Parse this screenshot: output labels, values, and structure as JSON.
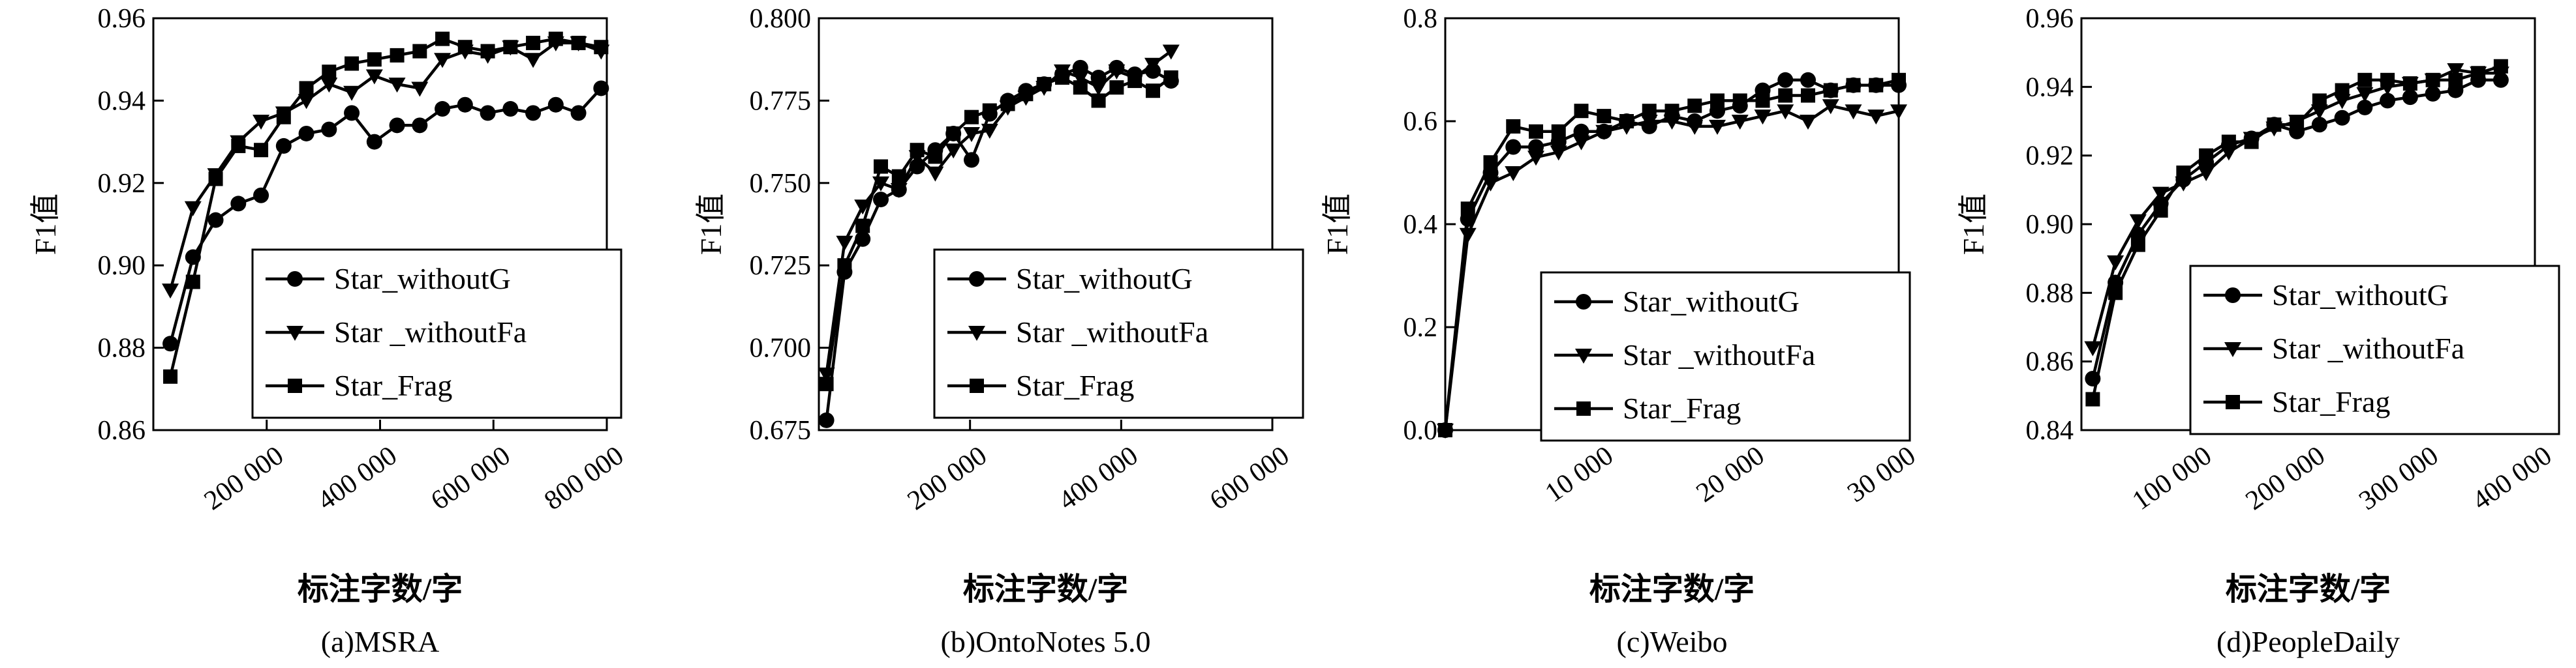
{
  "chart_data": [
    {
      "type": "line",
      "caption": "(a)MSRA",
      "xlabel": "标注字数/字",
      "ylabel": "F1值",
      "xlim": [
        0,
        800000
      ],
      "ylim": [
        0.86,
        0.96
      ],
      "xticks": [
        200000,
        400000,
        600000,
        800000
      ],
      "xtick_labels": [
        "200 000",
        "400 000",
        "600 000",
        "800 000"
      ],
      "yticks": [
        0.86,
        0.88,
        0.9,
        0.92,
        0.94,
        0.96
      ],
      "ytick_labels": [
        "0.86",
        "0.88",
        "0.90",
        "0.92",
        "0.94",
        "0.96"
      ],
      "legend_position": "lower-right",
      "grid": false,
      "series": [
        {
          "name": "Star_withoutG",
          "marker": "circle",
          "x": [
            30000,
            70000,
            110000,
            150000,
            190000,
            230000,
            270000,
            310000,
            350000,
            390000,
            430000,
            470000,
            510000,
            550000,
            590000,
            630000,
            670000,
            710000,
            750000,
            790000
          ],
          "y": [
            0.881,
            0.902,
            0.911,
            0.915,
            0.917,
            0.929,
            0.932,
            0.933,
            0.937,
            0.93,
            0.934,
            0.934,
            0.938,
            0.939,
            0.937,
            0.938,
            0.937,
            0.939,
            0.937,
            0.943
          ]
        },
        {
          "name": "Star _withoutFa",
          "marker": "triangle-down",
          "x": [
            30000,
            70000,
            110000,
            150000,
            190000,
            230000,
            270000,
            310000,
            350000,
            390000,
            430000,
            470000,
            510000,
            550000,
            590000,
            630000,
            670000,
            710000,
            750000,
            790000
          ],
          "y": [
            0.894,
            0.914,
            0.922,
            0.93,
            0.935,
            0.937,
            0.94,
            0.944,
            0.942,
            0.946,
            0.944,
            0.943,
            0.95,
            0.952,
            0.951,
            0.953,
            0.95,
            0.954,
            0.954,
            0.952
          ]
        },
        {
          "name": "Star_Frag",
          "marker": "square",
          "x": [
            30000,
            70000,
            110000,
            150000,
            190000,
            230000,
            270000,
            310000,
            350000,
            390000,
            430000,
            470000,
            510000,
            550000,
            590000,
            630000,
            670000,
            710000,
            750000,
            790000
          ],
          "y": [
            0.873,
            0.896,
            0.921,
            0.929,
            0.928,
            0.936,
            0.943,
            0.947,
            0.949,
            0.95,
            0.951,
            0.952,
            0.955,
            0.953,
            0.952,
            0.953,
            0.954,
            0.955,
            0.954,
            0.953
          ]
        }
      ]
    },
    {
      "type": "line",
      "caption": "(b)OntoNotes 5.0",
      "xlabel": "标注字数/字",
      "ylabel": "F1值",
      "xlim": [
        0,
        600000
      ],
      "ylim": [
        0.675,
        0.8
      ],
      "xticks": [
        200000,
        400000,
        600000
      ],
      "xtick_labels": [
        "200 000",
        "400 000",
        "600 000"
      ],
      "yticks": [
        0.675,
        0.7,
        0.725,
        0.75,
        0.775,
        0.8
      ],
      "ytick_labels": [
        "0.675",
        "0.700",
        "0.725",
        "0.750",
        "0.775",
        "0.800"
      ],
      "legend_position": "lower-right",
      "grid": false,
      "series": [
        {
          "name": "Star_withoutG",
          "marker": "circle",
          "x": [
            10000,
            34000,
            58000,
            82000,
            106000,
            130000,
            154000,
            178000,
            202000,
            226000,
            250000,
            274000,
            298000,
            322000,
            346000,
            370000,
            394000,
            418000,
            442000,
            466000
          ],
          "y": [
            0.678,
            0.723,
            0.733,
            0.745,
            0.748,
            0.755,
            0.76,
            0.765,
            0.757,
            0.771,
            0.775,
            0.778,
            0.78,
            0.783,
            0.785,
            0.782,
            0.785,
            0.783,
            0.784,
            0.781
          ]
        },
        {
          "name": "Star _withoutFa",
          "marker": "triangle-down",
          "x": [
            10000,
            34000,
            58000,
            82000,
            106000,
            130000,
            154000,
            178000,
            202000,
            226000,
            250000,
            274000,
            298000,
            322000,
            346000,
            370000,
            394000,
            418000,
            442000,
            466000
          ],
          "y": [
            0.692,
            0.732,
            0.743,
            0.75,
            0.748,
            0.758,
            0.753,
            0.76,
            0.765,
            0.766,
            0.773,
            0.776,
            0.779,
            0.784,
            0.782,
            0.779,
            0.784,
            0.782,
            0.786,
            0.79
          ]
        },
        {
          "name": "Star_Frag",
          "marker": "square",
          "x": [
            10000,
            34000,
            58000,
            82000,
            106000,
            130000,
            154000,
            178000,
            202000,
            226000,
            250000,
            274000,
            298000,
            322000,
            346000,
            370000,
            394000,
            418000,
            442000,
            466000
          ],
          "y": [
            0.689,
            0.725,
            0.737,
            0.755,
            0.752,
            0.76,
            0.758,
            0.765,
            0.77,
            0.772,
            0.774,
            0.777,
            0.78,
            0.782,
            0.779,
            0.775,
            0.779,
            0.781,
            0.778,
            0.782
          ]
        }
      ]
    },
    {
      "type": "line",
      "caption": "(c)Weibo",
      "xlabel": "标注字数/字",
      "ylabel": "F1值",
      "xlim": [
        0,
        30000
      ],
      "ylim": [
        0.0,
        0.8
      ],
      "xticks": [
        10000,
        20000,
        30000
      ],
      "xtick_labels": [
        "10 000",
        "20 000",
        "30 000"
      ],
      "yticks": [
        0.0,
        0.2,
        0.4,
        0.6,
        0.8
      ],
      "ytick_labels": [
        "0.0",
        "0.2",
        "0.4",
        "0.6",
        "0.8"
      ],
      "legend_position": "lower-right",
      "grid": false,
      "series": [
        {
          "name": "Star_withoutG",
          "marker": "circle",
          "x": [
            0,
            1500,
            3000,
            4500,
            6000,
            7500,
            9000,
            10500,
            12000,
            13500,
            15000,
            16500,
            18000,
            19500,
            21000,
            22500,
            24000,
            25500,
            27000,
            28500,
            30000
          ],
          "y": [
            0.0,
            0.41,
            0.5,
            0.55,
            0.55,
            0.56,
            0.58,
            0.58,
            0.6,
            0.59,
            0.61,
            0.6,
            0.62,
            0.63,
            0.66,
            0.68,
            0.68,
            0.66,
            0.67,
            0.67,
            0.67
          ]
        },
        {
          "name": "Star _withoutFa",
          "marker": "triangle-down",
          "x": [
            0,
            1500,
            3000,
            4500,
            6000,
            7500,
            9000,
            10500,
            12000,
            13500,
            15000,
            16500,
            18000,
            19500,
            21000,
            22500,
            24000,
            25500,
            27000,
            28500,
            30000
          ],
          "y": [
            0.0,
            0.38,
            0.48,
            0.5,
            0.53,
            0.54,
            0.56,
            0.58,
            0.59,
            0.6,
            0.6,
            0.59,
            0.59,
            0.6,
            0.61,
            0.62,
            0.6,
            0.63,
            0.62,
            0.61,
            0.62
          ]
        },
        {
          "name": "Star_Frag",
          "marker": "square",
          "x": [
            0,
            1500,
            3000,
            4500,
            6000,
            7500,
            9000,
            10500,
            12000,
            13500,
            15000,
            16500,
            18000,
            19500,
            21000,
            22500,
            24000,
            25500,
            27000,
            28500,
            30000
          ],
          "y": [
            0.0,
            0.43,
            0.52,
            0.59,
            0.58,
            0.58,
            0.62,
            0.61,
            0.6,
            0.62,
            0.62,
            0.63,
            0.64,
            0.64,
            0.64,
            0.65,
            0.65,
            0.66,
            0.67,
            0.67,
            0.68
          ]
        }
      ]
    },
    {
      "type": "line",
      "caption": "(d)PeopleDaily",
      "xlabel": "标注字数/字",
      "ylabel": "F1值",
      "xlim": [
        0,
        400000
      ],
      "ylim": [
        0.84,
        0.96
      ],
      "xticks": [
        100000,
        200000,
        300000,
        400000
      ],
      "xtick_labels": [
        "100 000",
        "200 000",
        "300 000",
        "400 000"
      ],
      "yticks": [
        0.84,
        0.86,
        0.88,
        0.9,
        0.92,
        0.94,
        0.96
      ],
      "ytick_labels": [
        "0.84",
        "0.86",
        "0.88",
        "0.90",
        "0.92",
        "0.94",
        "0.96"
      ],
      "legend_position": "lower-right",
      "grid": false,
      "series": [
        {
          "name": "Star_withoutG",
          "marker": "circle",
          "x": [
            10000,
            30000,
            50000,
            70000,
            90000,
            110000,
            130000,
            150000,
            170000,
            190000,
            210000,
            230000,
            250000,
            270000,
            290000,
            310000,
            330000,
            350000,
            370000
          ],
          "y": [
            0.855,
            0.883,
            0.897,
            0.906,
            0.913,
            0.918,
            0.923,
            0.925,
            0.929,
            0.927,
            0.929,
            0.931,
            0.934,
            0.936,
            0.937,
            0.938,
            0.939,
            0.942,
            0.942
          ]
        },
        {
          "name": "Star _withoutFa",
          "marker": "triangle-down",
          "x": [
            10000,
            30000,
            50000,
            70000,
            90000,
            110000,
            130000,
            150000,
            170000,
            190000,
            210000,
            230000,
            250000,
            270000,
            290000,
            310000,
            330000,
            350000,
            370000
          ],
          "y": [
            0.864,
            0.889,
            0.901,
            0.909,
            0.912,
            0.915,
            0.921,
            0.925,
            0.928,
            0.93,
            0.933,
            0.936,
            0.938,
            0.94,
            0.941,
            0.942,
            0.945,
            0.944,
            0.944
          ]
        },
        {
          "name": "Star_Frag",
          "marker": "square",
          "x": [
            10000,
            30000,
            50000,
            70000,
            90000,
            110000,
            130000,
            150000,
            170000,
            190000,
            210000,
            230000,
            250000,
            270000,
            290000,
            310000,
            330000,
            350000,
            370000
          ],
          "y": [
            0.849,
            0.88,
            0.894,
            0.904,
            0.915,
            0.92,
            0.924,
            0.924,
            0.929,
            0.929,
            0.936,
            0.939,
            0.942,
            0.942,
            0.941,
            0.942,
            0.942,
            0.944,
            0.946
          ]
        }
      ]
    }
  ]
}
